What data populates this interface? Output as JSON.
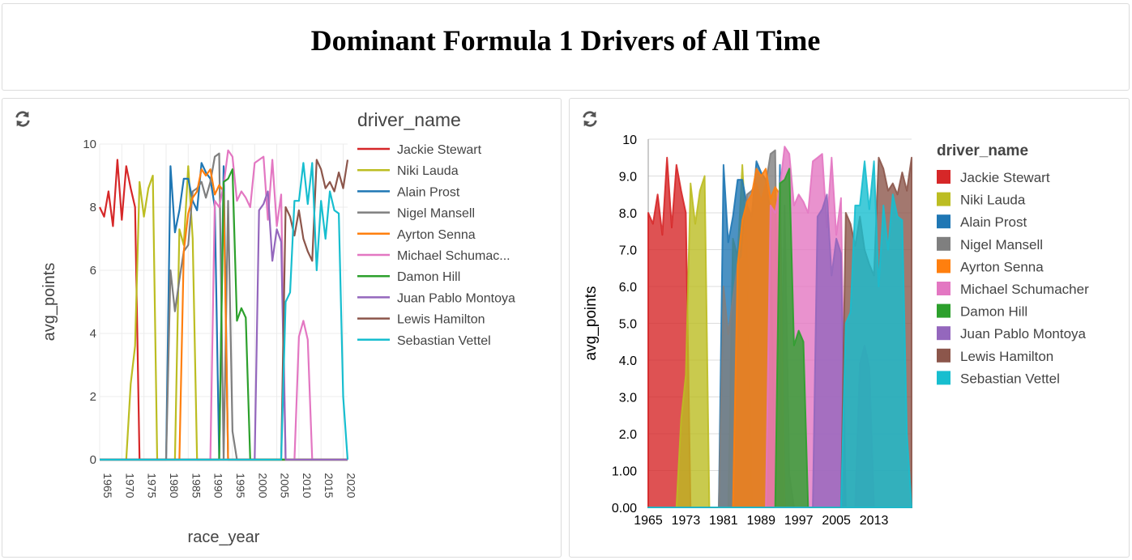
{
  "page": {
    "title": "Dominant Formula 1 Drivers of All Time"
  },
  "chart_data": [
    {
      "type": "line",
      "title": "",
      "xlabel": "race_year",
      "ylabel": "avg_points",
      "xlim": [
        1965,
        2021
      ],
      "ylim": [
        0,
        10
      ],
      "xticks": [
        1965,
        1970,
        1975,
        1980,
        1985,
        1990,
        1995,
        2000,
        2005,
        2010,
        2015,
        2020
      ],
      "yticks": [
        0,
        2,
        4,
        6,
        8,
        10
      ],
      "grid": true,
      "legend": {
        "title": "driver_name",
        "placement": "right"
      },
      "series": [
        {
          "name": "Jackie Stewart",
          "legend_label": "Jackie Stewart",
          "color": "#d62728",
          "points": [
            [
              1965,
              8.0
            ],
            [
              1966,
              7.7
            ],
            [
              1967,
              8.5
            ],
            [
              1968,
              7.4
            ],
            [
              1969,
              9.5
            ],
            [
              1970,
              7.6
            ],
            [
              1971,
              9.3
            ],
            [
              1972,
              8.6
            ],
            [
              1973,
              8.0
            ],
            [
              1974,
              0
            ],
            [
              2021,
              0
            ]
          ]
        },
        {
          "name": "Niki Lauda",
          "legend_label": "Niki Lauda",
          "color": "#bcbd22",
          "points": [
            [
              1965,
              0
            ],
            [
              1971,
              0
            ],
            [
              1972,
              2.4
            ],
            [
              1973,
              3.6
            ],
            [
              1974,
              8.8
            ],
            [
              1975,
              7.7
            ],
            [
              1976,
              8.6
            ],
            [
              1977,
              9.0
            ],
            [
              1978,
              0
            ],
            [
              1982,
              0
            ],
            [
              1983,
              7.3
            ],
            [
              1984,
              6.8
            ],
            [
              1985,
              9.3
            ],
            [
              1986,
              7.0
            ],
            [
              1987,
              0
            ],
            [
              2021,
              0
            ]
          ]
        },
        {
          "name": "Alain Prost",
          "legend_label": "Alain Prost",
          "color": "#1f77b4",
          "points": [
            [
              1965,
              0
            ],
            [
              1980,
              0
            ],
            [
              1981,
              9.3
            ],
            [
              1982,
              7.2
            ],
            [
              1983,
              7.9
            ],
            [
              1984,
              8.9
            ],
            [
              1985,
              8.9
            ],
            [
              1986,
              8.2
            ],
            [
              1987,
              7.9
            ],
            [
              1988,
              9.4
            ],
            [
              1989,
              9.1
            ],
            [
              1990,
              8.9
            ],
            [
              1991,
              8.0
            ],
            [
              1992,
              0
            ],
            [
              1993,
              9.3
            ],
            [
              1994,
              0
            ],
            [
              2021,
              0
            ]
          ]
        },
        {
          "name": "Nigel Mansell",
          "legend_label": "Nigel Mansell",
          "color": "#7f7f7f",
          "points": [
            [
              1965,
              0
            ],
            [
              1980,
              0
            ],
            [
              1981,
              6.0
            ],
            [
              1982,
              4.7
            ],
            [
              1983,
              5.7
            ],
            [
              1984,
              6.6
            ],
            [
              1985,
              6.8
            ],
            [
              1986,
              8.5
            ],
            [
              1987,
              8.6
            ],
            [
              1988,
              8.8
            ],
            [
              1989,
              8.3
            ],
            [
              1990,
              8.8
            ],
            [
              1991,
              9.6
            ],
            [
              1992,
              9.7
            ],
            [
              1993,
              0
            ],
            [
              1994,
              8.2
            ],
            [
              1995,
              0.9
            ],
            [
              1996,
              0
            ],
            [
              2021,
              0
            ]
          ]
        },
        {
          "name": "Ayrton Senna",
          "legend_label": "Ayrton Senna",
          "color": "#ff7f0e",
          "points": [
            [
              1965,
              0
            ],
            [
              1983,
              0
            ],
            [
              1984,
              6.6
            ],
            [
              1985,
              7.8
            ],
            [
              1986,
              8.3
            ],
            [
              1987,
              8.5
            ],
            [
              1988,
              9.2
            ],
            [
              1989,
              9.0
            ],
            [
              1990,
              9.2
            ],
            [
              1991,
              8.4
            ],
            [
              1992,
              8.7
            ],
            [
              1993,
              8.5
            ],
            [
              1994,
              0
            ],
            [
              2021,
              0
            ]
          ]
        },
        {
          "name": "Michael Schumacher",
          "legend_label": "Michael Schumac...",
          "color": "#e377c2",
          "points": [
            [
              1965,
              0
            ],
            [
              1990,
              0
            ],
            [
              1991,
              8.2
            ],
            [
              1992,
              8.0
            ],
            [
              1993,
              8.7
            ],
            [
              1994,
              9.8
            ],
            [
              1995,
              9.6
            ],
            [
              1996,
              8.2
            ],
            [
              1997,
              8.5
            ],
            [
              1998,
              8.3
            ],
            [
              1999,
              8.0
            ],
            [
              2000,
              9.4
            ],
            [
              2001,
              9.5
            ],
            [
              2002,
              9.6
            ],
            [
              2003,
              7.6
            ],
            [
              2004,
              9.5
            ],
            [
              2005,
              7.4
            ],
            [
              2006,
              8.4
            ],
            [
              2007,
              0
            ],
            [
              2009,
              0
            ],
            [
              2010,
              3.9
            ],
            [
              2011,
              4.4
            ],
            [
              2012,
              3.8
            ],
            [
              2013,
              0
            ],
            [
              2021,
              0
            ]
          ]
        },
        {
          "name": "Damon Hill",
          "legend_label": "Damon Hill",
          "color": "#2ca02c",
          "points": [
            [
              1965,
              0
            ],
            [
              1992,
              0
            ],
            [
              1993,
              8.8
            ],
            [
              1994,
              8.9
            ],
            [
              1995,
              9.2
            ],
            [
              1996,
              4.4
            ],
            [
              1997,
              4.8
            ],
            [
              1998,
              4.5
            ],
            [
              1999,
              0
            ],
            [
              2021,
              0
            ]
          ]
        },
        {
          "name": "Juan Pablo Montoya",
          "legend_label": "Juan Pablo Montoya",
          "color": "#9467bd",
          "points": [
            [
              1965,
              0
            ],
            [
              2000,
              0
            ],
            [
              2001,
              7.9
            ],
            [
              2002,
              8.1
            ],
            [
              2003,
              8.5
            ],
            [
              2004,
              6.3
            ],
            [
              2005,
              7.3
            ],
            [
              2006,
              6.9
            ],
            [
              2007,
              0
            ],
            [
              2021,
              0
            ]
          ]
        },
        {
          "name": "Lewis Hamilton",
          "legend_label": "Lewis Hamilton",
          "color": "#8c564b",
          "points": [
            [
              1965,
              0
            ],
            [
              2006,
              0
            ],
            [
              2007,
              8.0
            ],
            [
              2008,
              7.7
            ],
            [
              2009,
              7.1
            ],
            [
              2010,
              7.9
            ],
            [
              2011,
              7.0
            ],
            [
              2012,
              6.6
            ],
            [
              2013,
              6.3
            ],
            [
              2014,
              9.5
            ],
            [
              2015,
              9.2
            ],
            [
              2016,
              8.6
            ],
            [
              2017,
              8.8
            ],
            [
              2018,
              8.5
            ],
            [
              2019,
              9.1
            ],
            [
              2020,
              8.6
            ],
            [
              2021,
              9.5
            ]
          ]
        },
        {
          "name": "Sebastian Vettel",
          "legend_label": "Sebastian Vettel",
          "color": "#17becf",
          "points": [
            [
              1965,
              0
            ],
            [
              2006,
              0
            ],
            [
              2007,
              5.0
            ],
            [
              2008,
              5.3
            ],
            [
              2009,
              8.2
            ],
            [
              2010,
              8.2
            ],
            [
              2011,
              9.4
            ],
            [
              2012,
              8.1
            ],
            [
              2013,
              9.4
            ],
            [
              2014,
              6.0
            ],
            [
              2015,
              8.2
            ],
            [
              2016,
              7.0
            ],
            [
              2017,
              8.5
            ],
            [
              2018,
              7.9
            ],
            [
              2019,
              7.8
            ],
            [
              2020,
              2.0
            ],
            [
              2021,
              0
            ]
          ]
        }
      ]
    },
    {
      "type": "area",
      "title": "",
      "xlabel": "",
      "ylabel": "avg_points",
      "xlim": [
        1965,
        2021
      ],
      "ylim": [
        0,
        10
      ],
      "xticks": [
        1965,
        1973,
        1981,
        1989,
        1997,
        2005,
        2013
      ],
      "yticks": [
        0,
        1,
        2,
        3,
        4,
        5,
        6,
        7,
        8,
        9,
        10
      ],
      "ytick_labels": [
        "0.00",
        "1.00",
        "2.0",
        "3.0",
        "4.0",
        "5.0",
        "6.0",
        "7.0",
        "8.0",
        "9.0",
        "10"
      ],
      "grid": true,
      "legend": {
        "title": "driver_name",
        "placement": "right"
      },
      "series_ref": "same data as chart 1",
      "series_names": [
        "Jackie Stewart",
        "Niki Lauda",
        "Alain Prost",
        "Nigel Mansell",
        "Ayrton Senna",
        "Michael Schumacher",
        "Damon Hill",
        "Juan Pablo Montoya",
        "Lewis Hamilton",
        "Sebastian Vettel"
      ]
    }
  ]
}
